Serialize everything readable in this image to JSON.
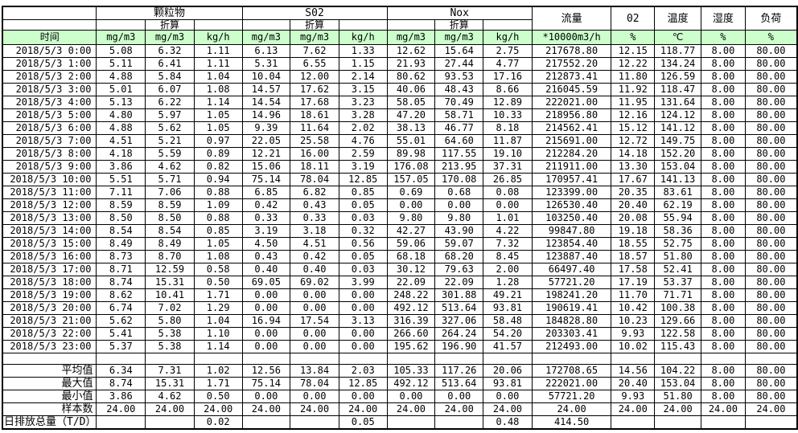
{
  "table": {
    "header": {
      "time_label": "时间",
      "groups": [
        {
          "label": "颗粒物",
          "sub": "折算"
        },
        {
          "label": "S02",
          "sub": "折算"
        },
        {
          "label": "Nox",
          "sub": "折算"
        }
      ],
      "pollutant_units": [
        "mg/m3",
        "mg/m3",
        "kg/h",
        "mg/m3",
        "mg/m3",
        "kg/h",
        "mg/m3",
        "mg/m3",
        "kg/h"
      ],
      "singles": [
        {
          "label": "流量",
          "unit": "*10000m3/h"
        },
        {
          "label": "02",
          "unit": "%"
        },
        {
          "label": "温度",
          "unit": "℃"
        },
        {
          "label": "湿度",
          "unit": "%"
        },
        {
          "label": "负荷",
          "unit": "%"
        }
      ]
    },
    "rows": [
      {
        "time": "2018/5/3  0:00",
        "values": [
          "5.08",
          "6.32",
          "1.11",
          "6.13",
          "7.62",
          "1.33",
          "12.62",
          "15.64",
          "2.75",
          "217678.80",
          "12.15",
          "118.77",
          "8.00",
          "80.00"
        ]
      },
      {
        "time": "2018/5/3  1:00",
        "values": [
          "5.11",
          "6.41",
          "1.11",
          "5.31",
          "6.55",
          "1.15",
          "21.93",
          "27.44",
          "4.77",
          "217552.20",
          "12.22",
          "134.24",
          "8.00",
          "80.00"
        ]
      },
      {
        "time": "2018/5/3  2:00",
        "values": [
          "4.88",
          "5.84",
          "1.04",
          "10.04",
          "12.00",
          "2.14",
          "80.62",
          "93.53",
          "17.16",
          "212873.41",
          "11.80",
          "126.59",
          "8.00",
          "80.00"
        ]
      },
      {
        "time": "2018/5/3  3:00",
        "values": [
          "5.01",
          "6.07",
          "1.08",
          "14.57",
          "17.62",
          "3.15",
          "40.06",
          "48.43",
          "8.66",
          "216045.59",
          "11.92",
          "118.47",
          "8.00",
          "80.00"
        ]
      },
      {
        "time": "2018/5/3  4:00",
        "values": [
          "5.13",
          "6.22",
          "1.14",
          "14.54",
          "17.68",
          "3.23",
          "58.05",
          "70.49",
          "12.89",
          "222021.00",
          "11.95",
          "131.64",
          "8.00",
          "80.00"
        ]
      },
      {
        "time": "2018/5/3  5:00",
        "values": [
          "4.80",
          "5.97",
          "1.05",
          "14.96",
          "18.61",
          "3.28",
          "47.20",
          "58.71",
          "10.33",
          "218956.80",
          "12.16",
          "124.12",
          "8.00",
          "80.00"
        ]
      },
      {
        "time": "2018/5/3  6:00",
        "values": [
          "4.88",
          "5.62",
          "1.05",
          "9.39",
          "11.64",
          "2.02",
          "38.13",
          "46.77",
          "8.18",
          "214562.41",
          "15.12",
          "141.12",
          "8.00",
          "80.00"
        ]
      },
      {
        "time": "2018/5/3  7:00",
        "values": [
          "4.51",
          "5.21",
          "0.97",
          "22.05",
          "25.58",
          "4.76",
          "55.01",
          "64.60",
          "11.87",
          "215691.00",
          "12.72",
          "149.75",
          "8.00",
          "80.00"
        ]
      },
      {
        "time": "2018/5/3  8:00",
        "values": [
          "4.18",
          "5.59",
          "0.89",
          "12.21",
          "16.00",
          "2.59",
          "89.98",
          "117.55",
          "19.10",
          "212284.20",
          "14.18",
          "152.20",
          "8.00",
          "80.00"
        ]
      },
      {
        "time": "2018/5/3  9:00",
        "values": [
          "3.86",
          "4.62",
          "0.82",
          "15.06",
          "18.11",
          "3.19",
          "176.08",
          "213.95",
          "37.31",
          "211911.00",
          "13.30",
          "153.04",
          "8.00",
          "80.00"
        ]
      },
      {
        "time": "2018/5/3 10:00",
        "values": [
          "5.51",
          "5.71",
          "0.94",
          "75.14",
          "78.04",
          "12.85",
          "157.05",
          "170.08",
          "26.85",
          "170957.41",
          "17.67",
          "141.13",
          "8.00",
          "80.00"
        ]
      },
      {
        "time": "2018/5/3 11:00",
        "values": [
          "7.11",
          "7.06",
          "0.88",
          "6.85",
          "6.82",
          "0.85",
          "0.69",
          "0.68",
          "0.08",
          "123399.00",
          "20.35",
          "83.61",
          "8.00",
          "80.00"
        ]
      },
      {
        "time": "2018/5/3 12:00",
        "values": [
          "8.59",
          "8.59",
          "1.09",
          "0.42",
          "0.43",
          "0.05",
          "0.00",
          "0.00",
          "0.00",
          "126530.40",
          "20.40",
          "62.19",
          "8.00",
          "80.00"
        ]
      },
      {
        "time": "2018/5/3 13:00",
        "values": [
          "8.50",
          "8.50",
          "0.88",
          "0.33",
          "0.33",
          "0.03",
          "9.80",
          "9.80",
          "1.01",
          "103250.40",
          "20.08",
          "55.94",
          "8.00",
          "80.00"
        ]
      },
      {
        "time": "2018/5/3 14:00",
        "values": [
          "8.54",
          "8.54",
          "0.85",
          "3.19",
          "3.18",
          "0.32",
          "42.27",
          "43.90",
          "4.22",
          "99847.80",
          "19.18",
          "58.36",
          "8.00",
          "80.00"
        ]
      },
      {
        "time": "2018/5/3 15:00",
        "values": [
          "8.49",
          "8.49",
          "1.05",
          "4.50",
          "4.51",
          "0.56",
          "59.06",
          "59.07",
          "7.32",
          "123854.40",
          "18.55",
          "52.75",
          "8.00",
          "80.00"
        ]
      },
      {
        "time": "2018/5/3 16:00",
        "values": [
          "8.73",
          "8.70",
          "1.08",
          "0.43",
          "0.42",
          "0.05",
          "68.18",
          "68.20",
          "8.45",
          "123887.40",
          "18.57",
          "51.80",
          "8.00",
          "80.00"
        ]
      },
      {
        "time": "2018/5/3 17:00",
        "values": [
          "8.71",
          "12.59",
          "0.58",
          "0.40",
          "0.40",
          "0.03",
          "30.12",
          "79.63",
          "2.00",
          "66497.40",
          "17.58",
          "52.41",
          "8.00",
          "80.00"
        ]
      },
      {
        "time": "2018/5/3 18:00",
        "values": [
          "8.74",
          "15.31",
          "0.50",
          "69.05",
          "69.02",
          "3.99",
          "22.09",
          "22.09",
          "1.28",
          "57721.20",
          "17.19",
          "53.37",
          "8.00",
          "80.00"
        ]
      },
      {
        "time": "2018/5/3 19:00",
        "values": [
          "8.62",
          "10.41",
          "1.71",
          "0.00",
          "0.00",
          "0.00",
          "248.22",
          "301.88",
          "49.21",
          "198241.20",
          "11.70",
          "71.71",
          "8.00",
          "80.00"
        ]
      },
      {
        "time": "2018/5/3 20:00",
        "values": [
          "6.74",
          "7.02",
          "1.29",
          "0.00",
          "0.00",
          "0.00",
          "492.12",
          "513.64",
          "93.81",
          "190619.41",
          "10.42",
          "100.38",
          "8.00",
          "80.00"
        ]
      },
      {
        "time": "2018/5/3 21:00",
        "values": [
          "5.62",
          "5.80",
          "1.04",
          "16.94",
          "17.54",
          "3.13",
          "316.39",
          "327.06",
          "58.48",
          "184828.80",
          "10.23",
          "129.66",
          "8.00",
          "80.00"
        ]
      },
      {
        "time": "2018/5/3 22:00",
        "values": [
          "5.41",
          "5.38",
          "1.10",
          "0.00",
          "0.00",
          "0.00",
          "266.60",
          "264.24",
          "54.20",
          "203303.41",
          "9.93",
          "122.58",
          "8.00",
          "80.00"
        ]
      },
      {
        "time": "2018/5/3 23:00",
        "values": [
          "5.37",
          "5.38",
          "1.14",
          "0.00",
          "0.00",
          "0.00",
          "195.62",
          "196.90",
          "41.57",
          "212493.00",
          "10.02",
          "115.43",
          "8.00",
          "80.00"
        ]
      }
    ],
    "summary": [
      {
        "label": "平均值",
        "values": [
          "6.34",
          "7.31",
          "1.02",
          "12.56",
          "13.84",
          "2.03",
          "105.33",
          "117.26",
          "20.06",
          "172708.65",
          "14.56",
          "104.22",
          "8.00",
          "80.00"
        ]
      },
      {
        "label": "最大值",
        "values": [
          "8.74",
          "15.31",
          "1.71",
          "75.14",
          "78.04",
          "12.85",
          "492.12",
          "513.64",
          "93.81",
          "222021.00",
          "20.40",
          "153.04",
          "8.00",
          "80.00"
        ]
      },
      {
        "label": "最小值",
        "values": [
          "3.86",
          "4.62",
          "0.50",
          "0.00",
          "0.00",
          "0.00",
          "0.00",
          "0.00",
          "0.00",
          "57721.20",
          "9.93",
          "51.80",
          "8.00",
          "80.00"
        ]
      },
      {
        "label": "样本数",
        "values": [
          "24.00",
          "24.00",
          "24.00",
          "24.00",
          "24.00",
          "24.00",
          "24.00",
          "24.00",
          "24.00",
          "24.00",
          "24.00",
          "24.00",
          "24.00",
          "24.00"
        ]
      },
      {
        "label": "日排放总量（T/D）",
        "values": [
          "",
          "",
          "0.02",
          "",
          "",
          "0.05",
          "",
          "",
          "0.48",
          "414.50",
          "",
          "",
          "",
          ""
        ]
      }
    ],
    "colors": {
      "header_green": "#ccffcc",
      "grid": "#000000"
    }
  }
}
